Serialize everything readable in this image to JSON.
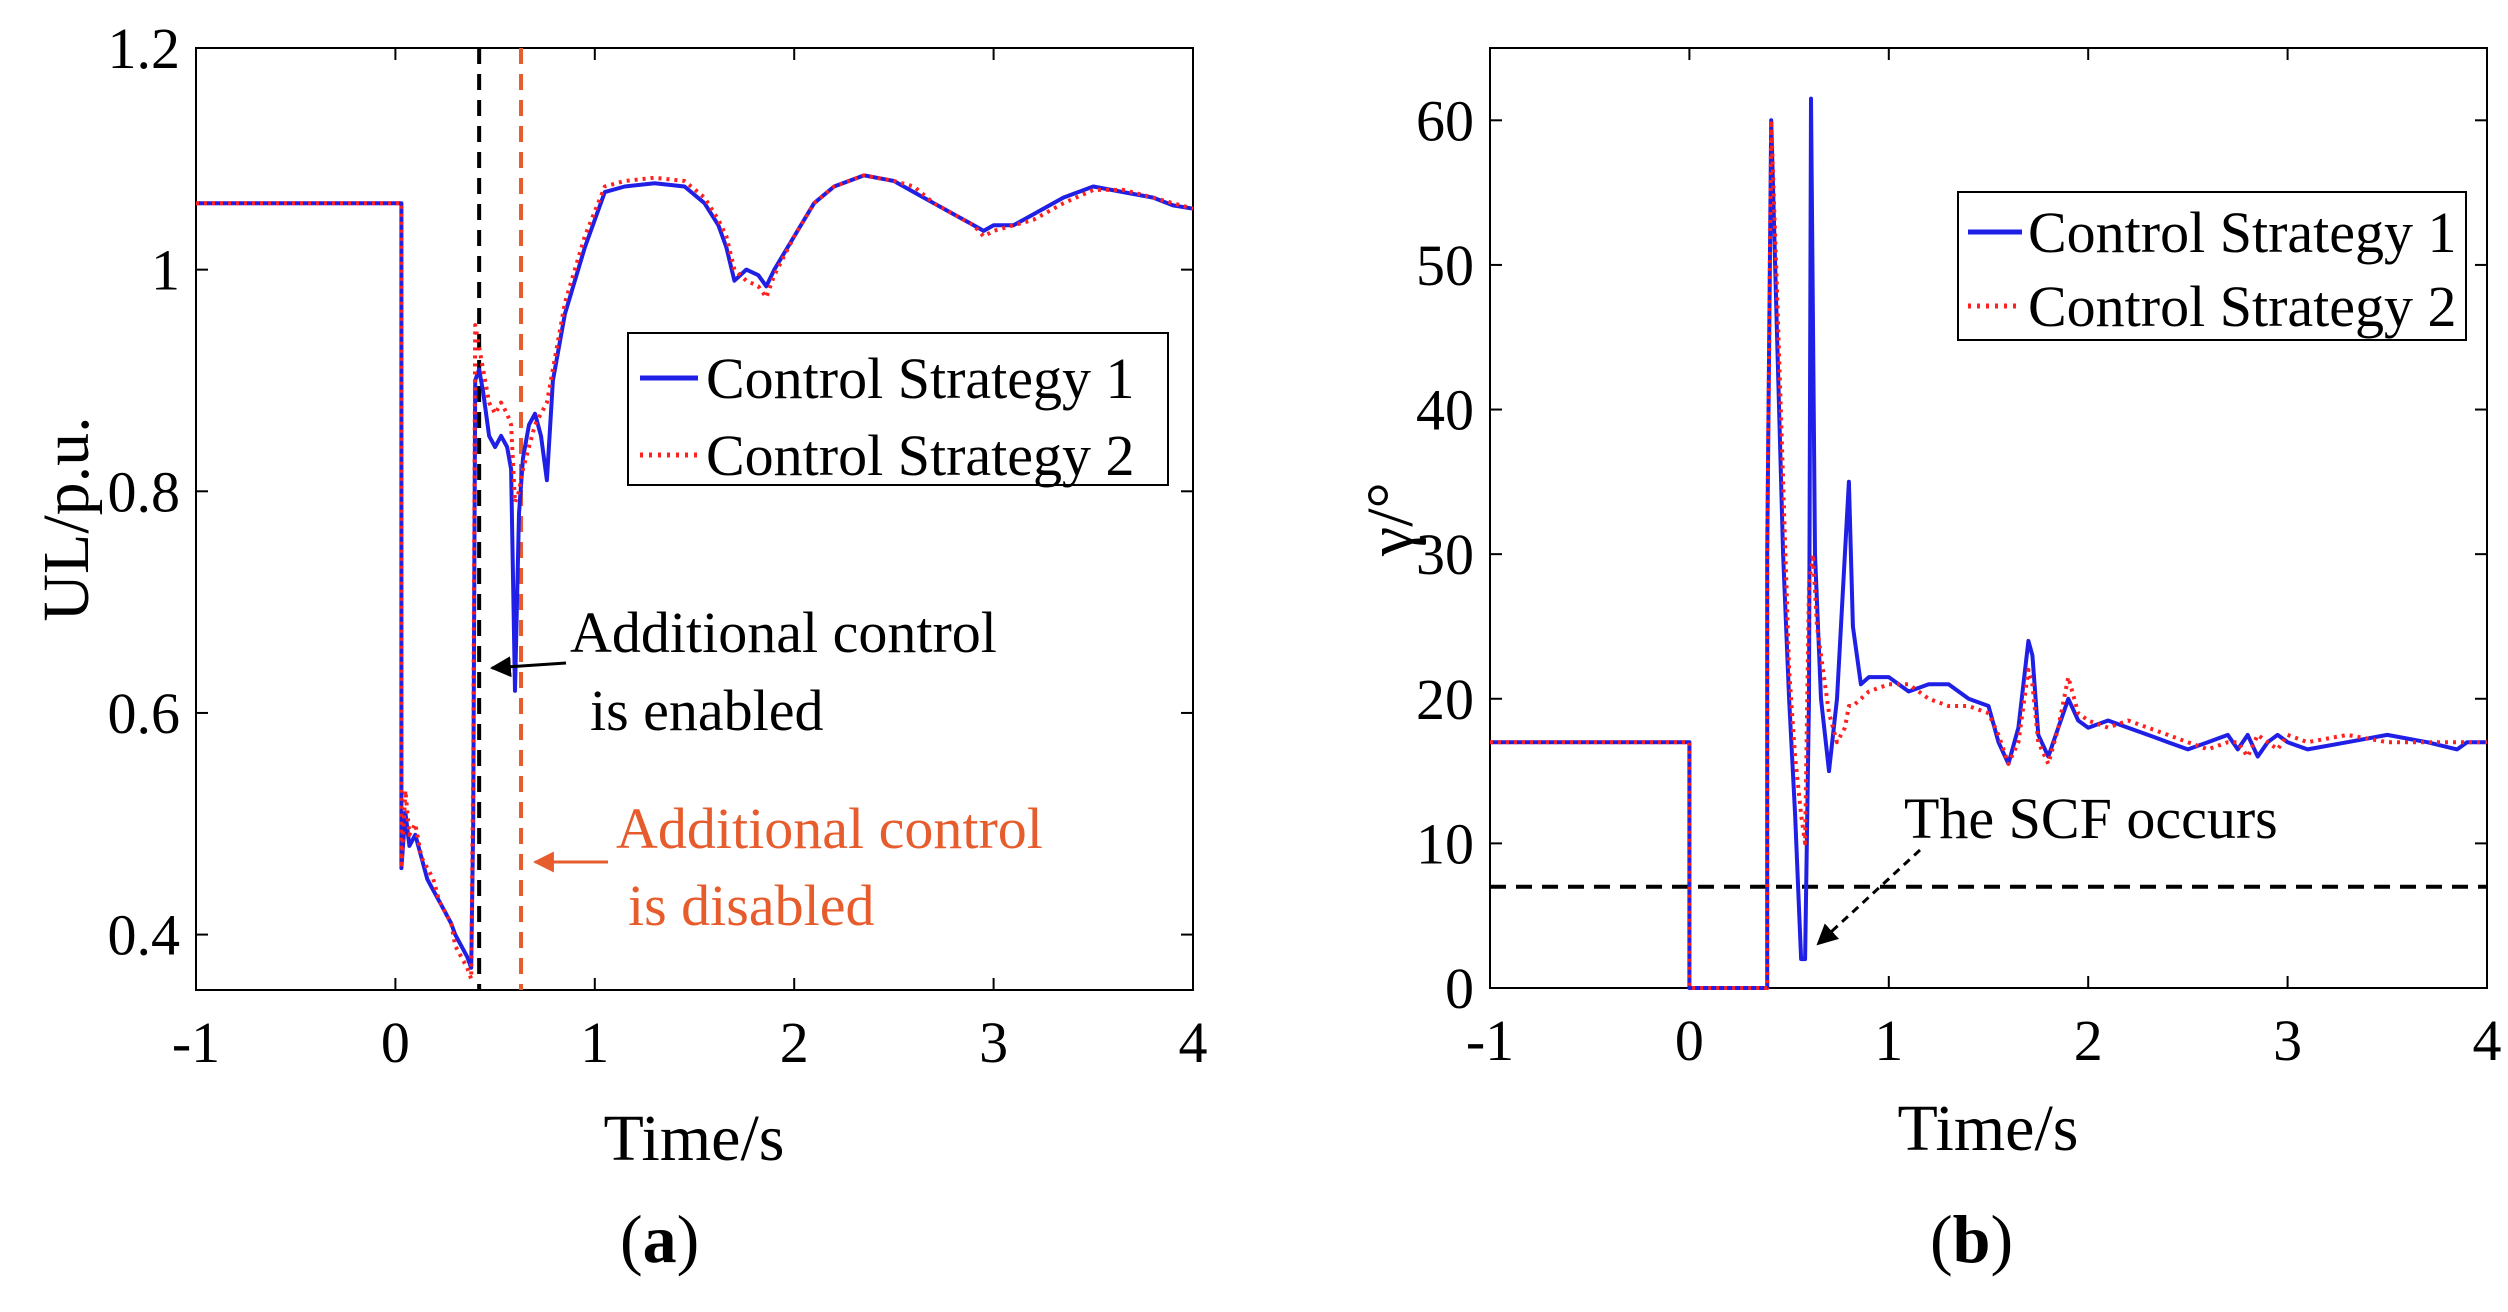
{
  "figure": {
    "panel_a": "a",
    "panel_b": "b"
  },
  "chart_data": [
    {
      "id": "a",
      "type": "line",
      "xlabel": "Time/s",
      "ylabel": "UL/p.u.",
      "xlim": [
        -1,
        4
      ],
      "ylim": [
        0.35,
        1.2
      ],
      "xticks": [
        -1,
        0,
        1,
        2,
        3,
        4
      ],
      "xtick_labels": [
        "-1",
        "0",
        "1",
        "2",
        "3",
        "4"
      ],
      "yticks": [
        0.4,
        0.6,
        0.8,
        1,
        1.2
      ],
      "ytick_labels": [
        "0.4",
        "0.6",
        "0.8",
        "1",
        "1.2"
      ],
      "legend_position": "right-middle",
      "series": [
        {
          "name": "Control Strategy 1",
          "color": "#1f1fe6",
          "style": "solid",
          "x": [
            -1,
            0.0,
            0.03,
            0.03,
            0.05,
            0.07,
            0.1,
            0.13,
            0.16,
            0.19,
            0.22,
            0.25,
            0.28,
            0.3,
            0.33,
            0.36,
            0.38,
            0.39,
            0.4,
            0.42,
            0.44,
            0.47,
            0.5,
            0.53,
            0.56,
            0.58,
            0.6,
            0.62,
            0.64,
            0.67,
            0.7,
            0.73,
            0.76,
            0.79,
            0.85,
            0.95,
            1.05,
            1.15,
            1.3,
            1.45,
            1.55,
            1.62,
            1.66,
            1.7,
            1.76,
            1.82,
            1.86,
            1.9,
            2.0,
            2.1,
            2.2,
            2.35,
            2.5,
            2.6,
            2.7,
            2.8,
            2.9,
            2.95,
            3.0,
            3.1,
            3.2,
            3.35,
            3.5,
            3.65,
            3.8,
            3.9,
            4.0
          ],
          "values": [
            1.06,
            1.06,
            1.06,
            0.46,
            0.51,
            0.48,
            0.49,
            0.47,
            0.45,
            0.44,
            0.43,
            0.42,
            0.41,
            0.4,
            0.39,
            0.38,
            0.37,
            0.5,
            0.9,
            0.91,
            0.89,
            0.85,
            0.84,
            0.85,
            0.84,
            0.82,
            0.62,
            0.78,
            0.83,
            0.86,
            0.87,
            0.85,
            0.81,
            0.9,
            0.96,
            1.02,
            1.07,
            1.075,
            1.078,
            1.075,
            1.06,
            1.04,
            1.02,
            0.99,
            1.0,
            0.995,
            0.985,
            1.0,
            1.03,
            1.06,
            1.075,
            1.085,
            1.08,
            1.07,
            1.06,
            1.05,
            1.04,
            1.035,
            1.04,
            1.04,
            1.05,
            1.065,
            1.075,
            1.07,
            1.065,
            1.058,
            1.055
          ]
        },
        {
          "name": "Control Strategy 2",
          "color": "#ff2020",
          "style": "dotted",
          "x": [
            -1,
            0.0,
            0.03,
            0.03,
            0.05,
            0.07,
            0.1,
            0.13,
            0.16,
            0.19,
            0.22,
            0.25,
            0.28,
            0.3,
            0.33,
            0.36,
            0.38,
            0.39,
            0.4,
            0.42,
            0.44,
            0.47,
            0.5,
            0.53,
            0.56,
            0.58,
            0.6,
            0.62,
            0.64,
            0.67,
            0.7,
            0.73,
            0.76,
            0.79,
            0.85,
            0.95,
            1.05,
            1.15,
            1.3,
            1.45,
            1.55,
            1.62,
            1.66,
            1.7,
            1.76,
            1.82,
            1.86,
            1.9,
            2.0,
            2.1,
            2.2,
            2.35,
            2.5,
            2.6,
            2.7,
            2.8,
            2.9,
            2.95,
            3.0,
            3.1,
            3.2,
            3.35,
            3.5,
            3.65,
            3.8,
            3.9,
            4.0
          ],
          "values": [
            1.06,
            1.06,
            1.06,
            0.46,
            0.53,
            0.49,
            0.5,
            0.47,
            0.46,
            0.45,
            0.43,
            0.42,
            0.41,
            0.39,
            0.38,
            0.37,
            0.36,
            0.55,
            0.95,
            0.93,
            0.91,
            0.88,
            0.87,
            0.88,
            0.87,
            0.86,
            0.79,
            0.8,
            0.82,
            0.84,
            0.86,
            0.87,
            0.88,
            0.91,
            0.97,
            1.03,
            1.075,
            1.08,
            1.083,
            1.08,
            1.065,
            1.045,
            1.03,
            1.0,
            0.99,
            0.985,
            0.975,
            0.995,
            1.03,
            1.06,
            1.075,
            1.085,
            1.08,
            1.075,
            1.06,
            1.05,
            1.04,
            1.03,
            1.035,
            1.04,
            1.045,
            1.06,
            1.072,
            1.072,
            1.065,
            1.06,
            1.055
          ]
        }
      ],
      "vlines": [
        {
          "x": 0.42,
          "color": "#000000",
          "style": "dashed"
        },
        {
          "x": 0.63,
          "color": "#e65c2c",
          "style": "dashed"
        }
      ],
      "annotations": [
        {
          "lines": [
            "Additional control",
            "is enabled"
          ],
          "color": "#000000",
          "arrow_to_x": 0.42
        },
        {
          "lines": [
            "Additional control",
            "is disabled"
          ],
          "color": "#e65c2c",
          "arrow_to_x": 0.63
        }
      ]
    },
    {
      "id": "b",
      "type": "line",
      "xlabel": "Time/s",
      "ylabel": "γ/°",
      "xlim": [
        -1,
        4
      ],
      "ylim": [
        0,
        65
      ],
      "xticks": [
        -1,
        0,
        1,
        2,
        3,
        4
      ],
      "xtick_labels": [
        "-1",
        "0",
        "1",
        "2",
        "3",
        "4"
      ],
      "yticks": [
        0,
        10,
        20,
        30,
        40,
        50,
        60
      ],
      "ytick_labels": [
        "0",
        "10",
        "20",
        "30",
        "40",
        "50",
        "60"
      ],
      "legend_position": "top-right",
      "series": [
        {
          "name": "Control Strategy 1",
          "color": "#1f1fe6",
          "style": "solid",
          "x": [
            -1,
            0.0,
            0.0,
            0.39,
            0.39,
            0.41,
            0.44,
            0.47,
            0.5,
            0.53,
            0.56,
            0.58,
            0.6,
            0.61,
            0.63,
            0.66,
            0.7,
            0.74,
            0.78,
            0.8,
            0.82,
            0.86,
            0.9,
            1.0,
            1.1,
            1.2,
            1.3,
            1.4,
            1.5,
            1.55,
            1.6,
            1.65,
            1.7,
            1.72,
            1.75,
            1.8,
            1.85,
            1.9,
            1.95,
            2.0,
            2.1,
            2.2,
            2.3,
            2.4,
            2.5,
            2.6,
            2.7,
            2.75,
            2.8,
            2.85,
            2.9,
            2.95,
            3.0,
            3.1,
            3.3,
            3.5,
            3.7,
            3.85,
            3.9,
            4.0
          ],
          "values": [
            17,
            17,
            0,
            0,
            30,
            60,
            45,
            30,
            20,
            12,
            2,
            2,
            20,
            61.5,
            30,
            20,
            15,
            20,
            30,
            35,
            25,
            21,
            21.5,
            21.5,
            20.5,
            21,
            21,
            20,
            19.5,
            17,
            15.5,
            18,
            24,
            23,
            17.5,
            16,
            18,
            20,
            18.5,
            18,
            18.5,
            18,
            17.5,
            17,
            16.5,
            17,
            17.5,
            16.5,
            17.5,
            16,
            17,
            17.5,
            17,
            16.5,
            17,
            17.5,
            17,
            16.5,
            17,
            17
          ]
        },
        {
          "name": "Control Strategy 2",
          "color": "#ff2020",
          "style": "dotted",
          "x": [
            -1,
            0.0,
            0.0,
            0.39,
            0.39,
            0.41,
            0.44,
            0.47,
            0.5,
            0.53,
            0.56,
            0.58,
            0.6,
            0.62,
            0.64,
            0.66,
            0.7,
            0.74,
            0.78,
            0.8,
            0.82,
            0.86,
            0.9,
            1.0,
            1.1,
            1.2,
            1.3,
            1.4,
            1.5,
            1.55,
            1.6,
            1.65,
            1.7,
            1.72,
            1.75,
            1.8,
            1.85,
            1.9,
            1.95,
            2.0,
            2.1,
            2.2,
            2.3,
            2.4,
            2.5,
            2.6,
            2.7,
            2.75,
            2.8,
            2.85,
            2.9,
            2.95,
            3.0,
            3.1,
            3.3,
            3.5,
            3.7,
            3.85,
            3.9,
            4.0
          ],
          "values": [
            17,
            17,
            0,
            0,
            30,
            60,
            48,
            35,
            22,
            16,
            12,
            10,
            28,
            30,
            25,
            23,
            19,
            17,
            18,
            19.5,
            19.5,
            20,
            20.5,
            21,
            21,
            20,
            19.5,
            19.5,
            19,
            17.5,
            15.5,
            17,
            22,
            21,
            17,
            15.5,
            18,
            21.5,
            19,
            18.5,
            18,
            18.5,
            18,
            17.5,
            17,
            16.5,
            17,
            17,
            16,
            17.5,
            17,
            16.5,
            17.5,
            17,
            17.5,
            17,
            17,
            17,
            17,
            17
          ]
        }
      ],
      "hlines": [
        {
          "y": 7,
          "color": "#000000",
          "style": "dashed"
        }
      ],
      "annotations": [
        {
          "lines": [
            "The SCF occurs"
          ],
          "color": "#000000",
          "arrow_to": [
            0.6,
            2
          ]
        }
      ]
    }
  ]
}
